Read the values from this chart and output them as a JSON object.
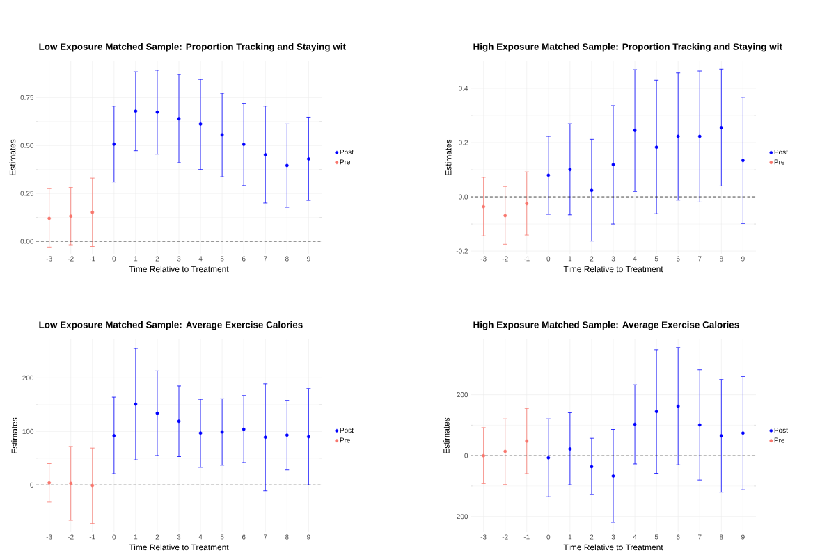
{
  "chart_data": [
    {
      "type": "scatter",
      "title": "Low Exposure Matched Sample: Proportion Tracking and Staying wit",
      "xlabel": "Time Relative to Treatment",
      "ylabel": "Estimates",
      "series": [
        {
          "name": "Post",
          "color": "#0000ff",
          "x": [
            0,
            1,
            2,
            3,
            4,
            5,
            6,
            7,
            8,
            9
          ],
          "values": [
            0.507,
            0.68,
            0.674,
            0.64,
            0.612,
            0.556,
            0.506,
            0.452,
            0.396,
            0.43
          ],
          "errors": [
            [
              0.31,
              0.705
            ],
            [
              0.473,
              0.885
            ],
            [
              0.455,
              0.893
            ],
            [
              0.41,
              0.871
            ],
            [
              0.375,
              0.845
            ],
            [
              0.337,
              0.773
            ],
            [
              0.291,
              0.72
            ],
            [
              0.2,
              0.705
            ],
            [
              0.178,
              0.612
            ],
            [
              0.214,
              0.648
            ]
          ]
        },
        {
          "name": "Pre",
          "color": "#f8766d",
          "x": [
            -3,
            -2,
            -1
          ],
          "values": [
            0.12,
            0.132,
            0.152
          ],
          "errors": [
            [
              -0.03,
              0.275
            ],
            [
              -0.018,
              0.281
            ],
            [
              -0.027,
              0.33
            ]
          ]
        }
      ],
      "xlim": [
        -3.6,
        9.6
      ],
      "xticks": [
        -3,
        -2,
        -1,
        0,
        1,
        2,
        3,
        4,
        5,
        6,
        7,
        8,
        9
      ],
      "ylim": [
        -0.065,
        0.94
      ],
      "yticks": [
        {
          "value": 0,
          "label": "0.00"
        },
        {
          "value": 0.25,
          "label": "0.25"
        },
        {
          "value": 0.5,
          "label": "0.50"
        },
        {
          "value": 0.75,
          "label": "0.75"
        }
      ],
      "ref_lines": [
        {
          "axis": "y",
          "value": 0,
          "color": "#000000",
          "line_style": "dashed"
        }
      ],
      "grid": true,
      "legend": "right"
    },
    {
      "type": "scatter",
      "title": "High Exposure Matched Sample: Proportion Tracking and Staying wit",
      "xlabel": "Time Relative to Treatment",
      "ylabel": "Estimates",
      "series": [
        {
          "name": "Post",
          "color": "#0000ff",
          "x": [
            0,
            1,
            2,
            3,
            4,
            5,
            6,
            7,
            8,
            9
          ],
          "values": [
            0.08,
            0.101,
            0.024,
            0.119,
            0.245,
            0.183,
            0.223,
            0.223,
            0.255,
            0.134
          ],
          "errors": [
            [
              -0.064,
              0.223
            ],
            [
              -0.066,
              0.269
            ],
            [
              -0.163,
              0.212
            ],
            [
              -0.1,
              0.336
            ],
            [
              0.02,
              0.469
            ],
            [
              -0.062,
              0.43
            ],
            [
              -0.012,
              0.457
            ],
            [
              -0.019,
              0.464
            ],
            [
              0.04,
              0.471
            ],
            [
              -0.098,
              0.367
            ]
          ]
        },
        {
          "name": "Pre",
          "color": "#f8766d",
          "x": [
            -3,
            -2,
            -1
          ],
          "values": [
            -0.036,
            -0.069,
            -0.025
          ],
          "errors": [
            [
              -0.144,
              0.072
            ],
            [
              -0.175,
              0.038
            ],
            [
              -0.141,
              0.092
            ]
          ]
        }
      ],
      "xlim": [
        -3.6,
        9.6
      ],
      "xticks": [
        -3,
        -2,
        -1,
        0,
        1,
        2,
        3,
        4,
        5,
        6,
        7,
        8,
        9
      ],
      "ylim": [
        -0.21,
        0.5
      ],
      "yticks": [
        -0.2,
        {
          "value": 0,
          "label": "0.0"
        },
        0.2,
        0.4
      ],
      "ref_lines": [
        {
          "axis": "y",
          "value": 0,
          "color": "#000000",
          "line_style": "dashed"
        }
      ],
      "grid": true,
      "legend": "right"
    },
    {
      "type": "scatter",
      "title": "Low Exposure Matched Sample: Average Exercise Calories",
      "xlabel": "Time Relative to Treatment",
      "ylabel": "Estimates",
      "series": [
        {
          "name": "Post",
          "color": "#0000ff",
          "x": [
            0,
            1,
            2,
            3,
            4,
            5,
            6,
            7,
            8,
            9
          ],
          "values": [
            92,
            151,
            134,
            119,
            97,
            99,
            104,
            89,
            93,
            90
          ],
          "errors": [
            [
              21,
              164
            ],
            [
              47,
              255
            ],
            [
              55,
              213
            ],
            [
              53,
              185
            ],
            [
              33,
              160
            ],
            [
              37,
              161
            ],
            [
              42,
              167
            ],
            [
              -11,
              189
            ],
            [
              28,
              158
            ],
            [
              0,
              180
            ]
          ]
        },
        {
          "name": "Pre",
          "color": "#f8766d",
          "x": [
            -3,
            -2,
            -1
          ],
          "values": [
            4,
            3,
            -1
          ],
          "errors": [
            [
              -32,
              40
            ],
            [
              -66,
              72
            ],
            [
              -72,
              69
            ]
          ]
        }
      ],
      "xlim": [
        -3.6,
        9.6
      ],
      "xticks": [
        -3,
        -2,
        -1,
        0,
        1,
        2,
        3,
        4,
        5,
        6,
        7,
        8,
        9
      ],
      "ylim": [
        -88,
        272
      ],
      "yticks": [
        0,
        100,
        200
      ],
      "ref_lines": [
        {
          "axis": "y",
          "value": 0,
          "color": "#000000",
          "line_style": "dashed"
        }
      ],
      "grid": true,
      "legend": "right"
    },
    {
      "type": "scatter",
      "title": "High Exposure Matched Sample: Average Exercise Calories",
      "xlabel": "Time Relative to Treatment",
      "ylabel": "Estimates",
      "series": [
        {
          "name": "Post",
          "color": "#0000ff",
          "x": [
            0,
            1,
            2,
            3,
            4,
            5,
            6,
            7,
            8,
            9
          ],
          "values": [
            -7,
            22,
            -36,
            -67,
            103,
            145,
            162,
            101,
            65,
            74
          ],
          "errors": [
            [
              -135,
              121
            ],
            [
              -96,
              141
            ],
            [
              -128,
              57
            ],
            [
              -219,
              86
            ],
            [
              -27,
              233
            ],
            [
              -58,
              348
            ],
            [
              -30,
              355
            ],
            [
              -80,
              282
            ],
            [
              -120,
              250
            ],
            [
              -112,
              260
            ]
          ]
        },
        {
          "name": "Pre",
          "color": "#f8766d",
          "x": [
            -3,
            -2,
            -1
          ],
          "values": [
            0,
            14,
            48
          ],
          "errors": [
            [
              -92,
              92
            ],
            [
              -95,
              121
            ],
            [
              -59,
              155
            ]
          ]
        }
      ],
      "xlim": [
        -3.6,
        9.6
      ],
      "xticks": [
        -3,
        -2,
        -1,
        0,
        1,
        2,
        3,
        4,
        5,
        6,
        7,
        8,
        9
      ],
      "ylim": [
        -251,
        382
      ],
      "yticks": [
        -200,
        0,
        200
      ],
      "ref_lines": [
        {
          "axis": "y",
          "value": 0,
          "color": "#000000",
          "line_style": "dashed"
        }
      ],
      "grid": true,
      "legend": "right"
    }
  ]
}
